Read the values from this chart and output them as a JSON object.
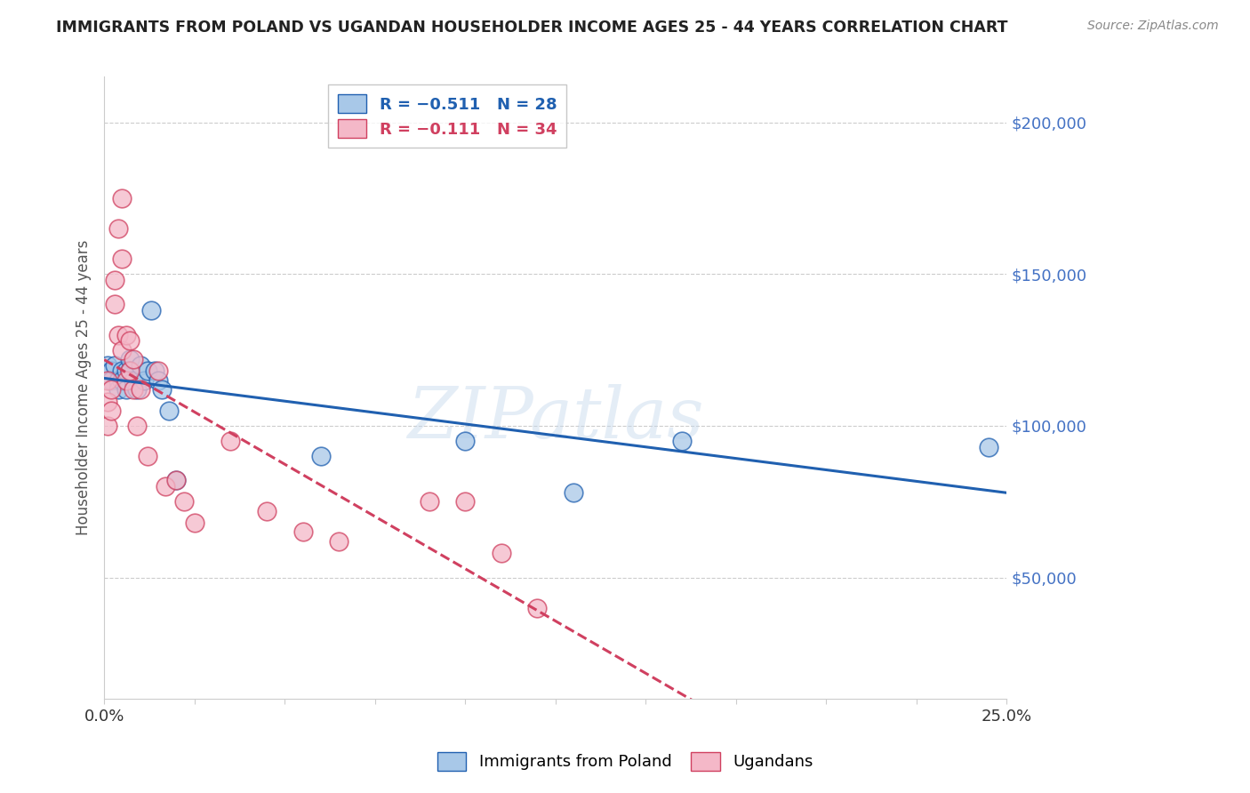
{
  "title": "IMMIGRANTS FROM POLAND VS UGANDAN HOUSEHOLDER INCOME AGES 25 - 44 YEARS CORRELATION CHART",
  "source": "Source: ZipAtlas.com",
  "ylabel": "Householder Income Ages 25 - 44 years",
  "y_ticks": [
    50000,
    100000,
    150000,
    200000
  ],
  "y_tick_labels": [
    "$50,000",
    "$100,000",
    "$150,000",
    "$200,000"
  ],
  "ylim": [
    10000,
    215000
  ],
  "xlim": [
    0.0,
    0.25
  ],
  "poland_x": [
    0.001,
    0.002,
    0.002,
    0.003,
    0.004,
    0.004,
    0.005,
    0.005,
    0.006,
    0.006,
    0.007,
    0.007,
    0.008,
    0.009,
    0.01,
    0.011,
    0.012,
    0.013,
    0.014,
    0.015,
    0.016,
    0.018,
    0.02,
    0.06,
    0.1,
    0.13,
    0.16,
    0.245
  ],
  "poland_y": [
    120000,
    118000,
    115000,
    120000,
    115000,
    112000,
    118000,
    115000,
    112000,
    118000,
    122000,
    118000,
    115000,
    112000,
    120000,
    115000,
    118000,
    138000,
    118000,
    115000,
    112000,
    105000,
    82000,
    90000,
    95000,
    78000,
    95000,
    93000
  ],
  "uganda_x": [
    0.001,
    0.001,
    0.001,
    0.002,
    0.002,
    0.003,
    0.003,
    0.004,
    0.004,
    0.005,
    0.005,
    0.005,
    0.006,
    0.006,
    0.007,
    0.007,
    0.008,
    0.008,
    0.009,
    0.01,
    0.012,
    0.015,
    0.017,
    0.02,
    0.022,
    0.025,
    0.035,
    0.045,
    0.055,
    0.065,
    0.09,
    0.1,
    0.11,
    0.12
  ],
  "uganda_y": [
    115000,
    108000,
    100000,
    112000,
    105000,
    148000,
    140000,
    130000,
    165000,
    175000,
    155000,
    125000,
    130000,
    115000,
    128000,
    118000,
    122000,
    112000,
    100000,
    112000,
    90000,
    118000,
    80000,
    82000,
    75000,
    68000,
    95000,
    72000,
    65000,
    62000,
    75000,
    75000,
    58000,
    40000
  ],
  "poland_color": "#a8c8e8",
  "uganda_color": "#f4b8c8",
  "poland_line_color": "#2060b0",
  "uganda_line_color": "#d04060",
  "poland_line_style": "-",
  "uganda_line_style": "--",
  "watermark": "ZIPatlas",
  "background_color": "#ffffff",
  "grid_color": "#cccccc",
  "ytick_color": "#4472c4",
  "title_color": "#222222",
  "source_color": "#888888"
}
